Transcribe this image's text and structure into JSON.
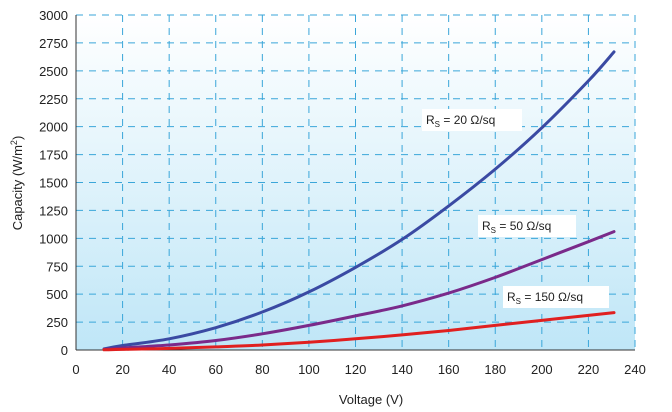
{
  "chart_data": {
    "type": "line",
    "xlabel": "Voltage (V)",
    "ylabel_main": "Capacity (W/m",
    "ylabel_sup": "2",
    "ylabel_end": ")",
    "xlim": [
      0,
      240
    ],
    "ylim": [
      0,
      3000
    ],
    "x_ticks": [
      "0",
      "20",
      "40",
      "60",
      "80",
      "100",
      "120",
      "140",
      "160",
      "180",
      "200",
      "220",
      "240"
    ],
    "y_ticks": [
      "0",
      "250",
      "500",
      "750",
      "1000",
      "1250",
      "1500",
      "1750",
      "2000",
      "2250",
      "2500",
      "2750",
      "3000"
    ],
    "grid": true,
    "colors": {
      "plot_background_top": "#ffffff",
      "plot_background_bottom": "#bfe6f7",
      "grid": "#3aa6d9",
      "axis": "#333333"
    },
    "series": [
      {
        "label_main": "R",
        "label_sub": "S",
        "label_rest": " = 20 Ω/sq",
        "color": "#3a4aa3",
        "x": [
          12,
          20,
          40,
          60,
          80,
          100,
          120,
          140,
          160,
          180,
          200,
          220,
          231
        ],
        "y": [
          10,
          40,
          100,
          200,
          340,
          520,
          740,
          990,
          1290,
          1620,
          1990,
          2410,
          2670
        ]
      },
      {
        "label_main": "R",
        "label_sub": "S",
        "label_rest": " = 50 Ω/sq",
        "color": "#7a2a8a",
        "x": [
          12,
          20,
          40,
          60,
          80,
          100,
          120,
          140,
          160,
          180,
          200,
          220,
          231
        ],
        "y": [
          5,
          18,
          45,
          85,
          145,
          220,
          305,
          395,
          510,
          650,
          810,
          970,
          1060
        ]
      },
      {
        "label_main": "R",
        "label_sub": "S",
        "label_rest": " = 150 Ω/sq",
        "color": "#e02020",
        "x": [
          12,
          20,
          40,
          60,
          80,
          100,
          120,
          140,
          160,
          180,
          200,
          220,
          231
        ],
        "y": [
          2,
          5,
          14,
          28,
          45,
          70,
          100,
          135,
          175,
          220,
          265,
          310,
          335
        ]
      }
    ]
  }
}
